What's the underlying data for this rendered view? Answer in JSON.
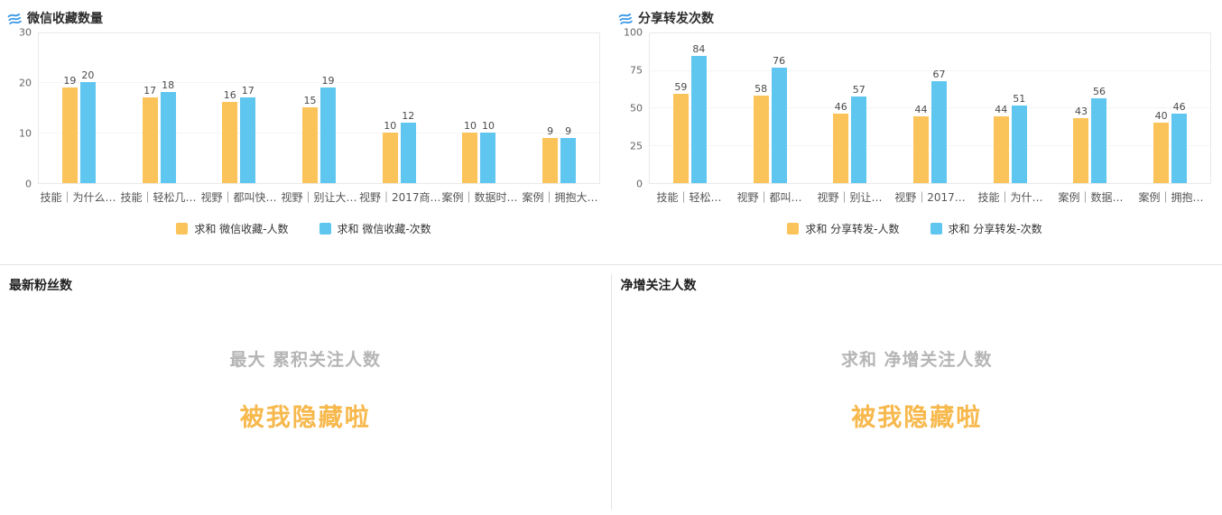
{
  "colors": {
    "series_yellow": "#FAC45A",
    "series_blue": "#5FC6F0",
    "icon_blue": "#3D9AE8",
    "hidden_message_orange": "#F7B84C",
    "subtitle_gray": "#B5B5B5"
  },
  "icons": {
    "chart_title_icon": "triple-wave-icon"
  },
  "chart_data": [
    {
      "type": "bar",
      "title": "微信收藏数量",
      "categories": [
        "技能｜为什么…",
        "技能｜轻松几…",
        "视野｜都叫快…",
        "视野｜别让大…",
        "视野｜2017商…",
        "案例｜数据时…",
        "案例｜拥抱大…"
      ],
      "series": [
        {
          "name": "求和 微信收藏-人数",
          "color": "#FAC45A",
          "values": [
            19,
            17,
            16,
            15,
            10,
            10,
            9
          ]
        },
        {
          "name": "求和 微信收藏-次数",
          "color": "#5FC6F0",
          "values": [
            20,
            18,
            17,
            19,
            12,
            10,
            9
          ]
        }
      ],
      "ylim": [
        0,
        30
      ],
      "yticks": [
        0,
        10,
        20,
        30
      ],
      "grid": true,
      "legend_position": "bottom"
    },
    {
      "type": "bar",
      "title": "分享转发次数",
      "categories": [
        "技能｜轻松…",
        "视野｜都叫…",
        "视野｜别让…",
        "视野｜2017…",
        "技能｜为什…",
        "案例｜数据…",
        "案例｜拥抱…"
      ],
      "series": [
        {
          "name": "求和 分享转发-人数",
          "color": "#FAC45A",
          "values": [
            59,
            58,
            46,
            44,
            44,
            43,
            40
          ]
        },
        {
          "name": "求和 分享转发-次数",
          "color": "#5FC6F0",
          "values": [
            84,
            76,
            57,
            67,
            51,
            56,
            46
          ]
        }
      ],
      "ylim": [
        0,
        100
      ],
      "yticks": [
        0,
        25,
        50,
        75,
        100
      ],
      "grid": true,
      "legend_position": "bottom"
    }
  ],
  "panels": [
    {
      "title": "最新粉丝数",
      "subtitle": "最大 累积关注人数",
      "message": "被我隐藏啦"
    },
    {
      "title": "净增关注人数",
      "subtitle": "求和 净增关注人数",
      "message": "被我隐藏啦"
    }
  ]
}
